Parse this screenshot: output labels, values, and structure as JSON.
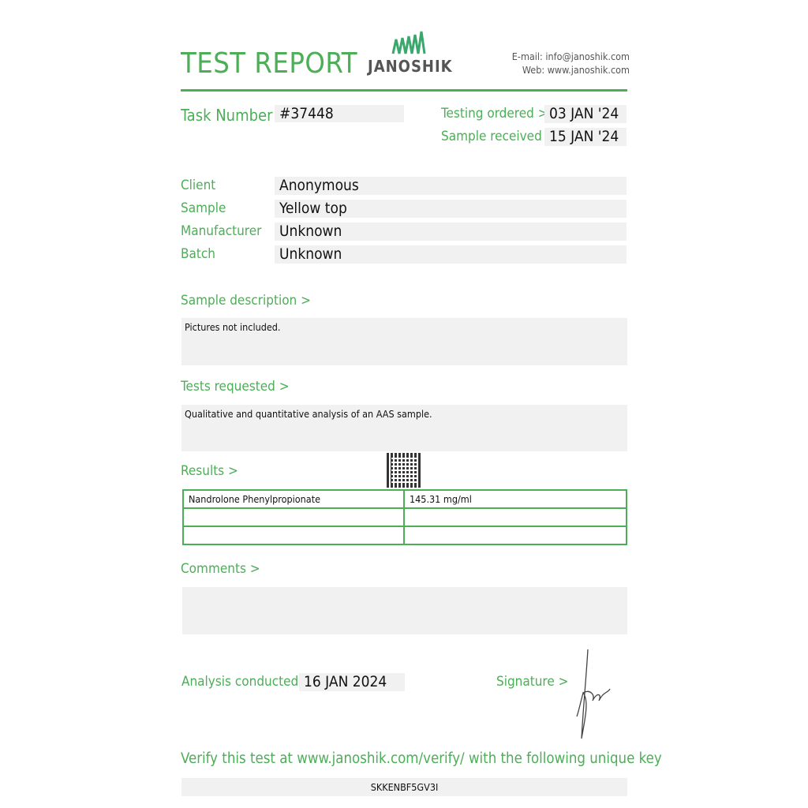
{
  "header": {
    "title": "TEST REPORT",
    "logo_text": "JANOSHIK",
    "email_label": "E-mail:",
    "email": "info@janoshik.com",
    "web_label": "Web:",
    "web": "www.janoshik.com",
    "accent_color": "#4cae57"
  },
  "task": {
    "label": "Task Number",
    "value": "#37448"
  },
  "dates": {
    "ordered_label": "Testing ordered  >",
    "ordered": "03 JAN '24",
    "received_label": "Sample received >",
    "received": "15 JAN '24"
  },
  "info": [
    {
      "label": "Client",
      "value": "Anonymous"
    },
    {
      "label": "Sample",
      "value": "Yellow top"
    },
    {
      "label": "Manufacturer",
      "value": "Unknown"
    },
    {
      "label": "Batch",
      "value": "Unknown"
    }
  ],
  "description": {
    "label": "Sample description >",
    "value": "Pictures not included."
  },
  "tests": {
    "label": "Tests requested >",
    "value": "Qualitative and quantitative analysis of an AAS sample."
  },
  "results": {
    "label": "Results >",
    "rows": [
      [
        "Nandrolone Phenylpropionate",
        "145.31 mg/ml"
      ],
      [
        "",
        ""
      ],
      [
        "",
        ""
      ]
    ]
  },
  "comments": {
    "label": "Comments >",
    "value": ""
  },
  "analysis": {
    "label": "Analysis conducted >",
    "value": "16 JAN 2024"
  },
  "signature": {
    "label": "Signature >"
  },
  "verify": {
    "text": "Verify this test at www.janoshik.com/verify/ with the following unique key",
    "key": "SKKENBF5GV3I"
  }
}
